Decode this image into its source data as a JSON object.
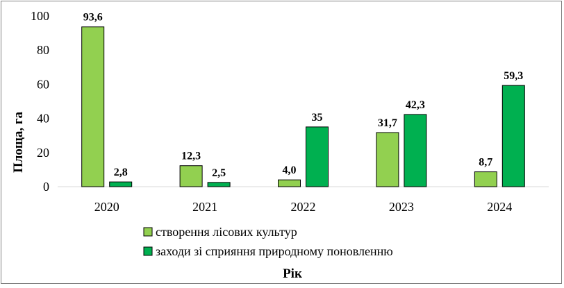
{
  "chart_data": {
    "type": "bar",
    "categories": [
      "2020",
      "2021",
      "2022",
      "2023",
      "2024"
    ],
    "series": [
      {
        "name": "створення лісових культур",
        "values": [
          93.6,
          12.3,
          4.0,
          31.7,
          8.7
        ],
        "labels": [
          "93,6",
          "12,3",
          "4,0",
          "31,7",
          "8,7"
        ],
        "color": "#92d050"
      },
      {
        "name": "заходи зі сприяння природному поновленню",
        "values": [
          2.8,
          2.5,
          35,
          42.3,
          59.3
        ],
        "labels": [
          "2,8",
          "2,5",
          "35",
          "42,3",
          "59,3"
        ],
        "color": "#00b050"
      }
    ],
    "xlabel": "Рік",
    "ylabel": "Площа, га",
    "ylim": [
      0,
      100
    ],
    "yticks": [
      0,
      20,
      40,
      60,
      80,
      100
    ],
    "grid": false,
    "legend_position": "bottom-center"
  }
}
